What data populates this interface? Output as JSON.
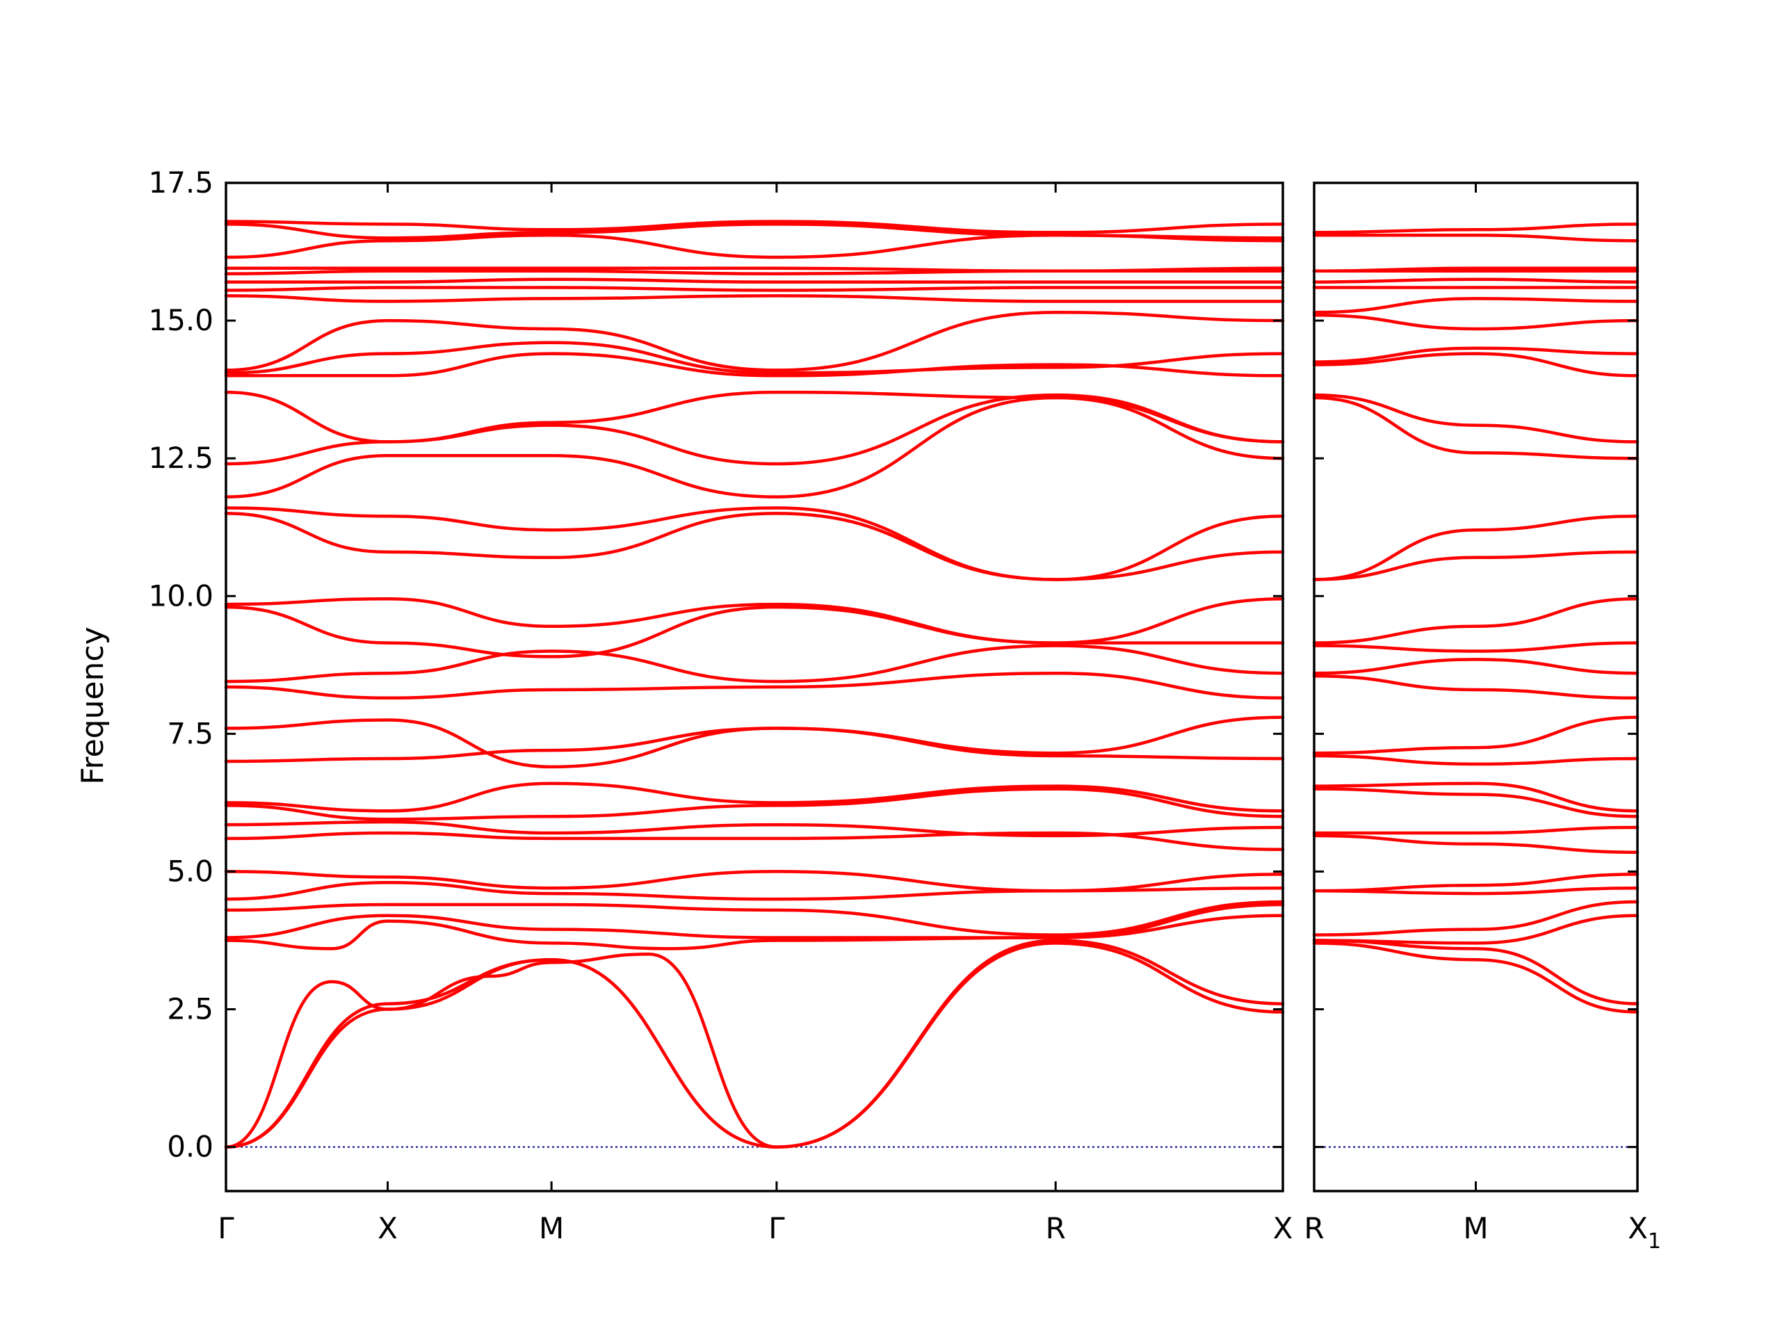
{
  "chart_data": {
    "type": "line",
    "ylabel": "Frequency",
    "ylim": [
      -0.8,
      17.5
    ],
    "yticks": [
      "0.0",
      "2.5",
      "5.0",
      "7.5",
      "10.0",
      "12.5",
      "15.0",
      "17.5"
    ],
    "ytick_values": [
      0,
      2.5,
      5,
      7.5,
      10,
      12.5,
      15,
      17.5
    ],
    "colors": {
      "bands": "#ff0000",
      "zero_line": "#00008b"
    },
    "grid": false,
    "legend": "none",
    "panels": [
      {
        "xlabels": [
          "Γ",
          "X",
          "M",
          "Γ",
          "R",
          "X"
        ],
        "xticks": [
          0,
          0.153,
          0.308,
          0.521,
          0.785,
          1.0
        ],
        "series": [
          {
            "x": [
              0,
              0.1,
              0.153,
              0.25,
              0.308,
              0.4,
              0.521
            ],
            "values": [
              0,
              3.0,
              2.5,
              3.1,
              3.35,
              3.5,
              0
            ]
          },
          {
            "x": [
              0,
              0.153,
              0.308,
              0.521,
              0.785,
              1.0
            ],
            "values": [
              0,
              2.5,
              3.4,
              0,
              3.7,
              2.45
            ]
          },
          {
            "x": [
              0,
              0.153,
              0.308,
              0.521,
              0.785,
              1.0
            ],
            "values": [
              0,
              2.6,
              3.4,
              0,
              3.75,
              2.6
            ]
          },
          {
            "x": [
              0,
              0.1,
              0.153,
              0.308,
              0.42,
              0.521,
              0.785,
              1.0
            ],
            "values": [
              3.75,
              3.6,
              4.1,
              3.7,
              3.6,
              3.75,
              3.8,
              4.2
            ]
          },
          {
            "x": [
              0,
              0.153,
              0.308,
              0.521,
              0.785,
              1.0
            ],
            "values": [
              3.8,
              4.2,
              3.95,
              3.8,
              3.8,
              4.4
            ]
          },
          {
            "x": [
              0,
              0.153,
              0.308,
              0.521,
              0.785,
              1.0
            ],
            "values": [
              4.3,
              4.4,
              4.4,
              4.3,
              3.85,
              4.45
            ]
          },
          {
            "x": [
              0,
              0.153,
              0.308,
              0.521,
              0.785,
              1.0
            ],
            "values": [
              4.5,
              4.8,
              4.6,
              4.5,
              4.65,
              4.7
            ]
          },
          {
            "x": [
              0,
              0.153,
              0.308,
              0.521,
              0.785,
              1.0
            ],
            "values": [
              5.0,
              4.9,
              4.7,
              5.0,
              4.65,
              4.95
            ]
          },
          {
            "x": [
              0,
              0.153,
              0.308,
              0.521,
              0.785,
              1.0
            ],
            "values": [
              5.6,
              5.7,
              5.6,
              5.6,
              5.7,
              5.4
            ]
          },
          {
            "x": [
              0,
              0.153,
              0.308,
              0.521,
              0.785,
              1.0
            ],
            "values": [
              5.85,
              5.9,
              5.7,
              5.85,
              5.65,
              5.8
            ]
          },
          {
            "x": [
              0,
              0.153,
              0.308,
              0.521,
              0.785,
              1.0
            ],
            "values": [
              6.2,
              5.95,
              6.0,
              6.2,
              6.5,
              6.0
            ]
          },
          {
            "x": [
              0,
              0.153,
              0.308,
              0.521,
              0.785,
              1.0
            ],
            "values": [
              6.25,
              6.1,
              6.6,
              6.25,
              6.55,
              6.1
            ]
          },
          {
            "x": [
              0,
              0.153,
              0.308,
              0.521,
              0.785,
              1.0
            ],
            "values": [
              7.0,
              7.05,
              7.2,
              7.6,
              7.1,
              7.05
            ]
          },
          {
            "x": [
              0,
              0.153,
              0.308,
              0.521,
              0.785,
              1.0
            ],
            "values": [
              7.6,
              7.75,
              6.9,
              7.6,
              7.15,
              7.8
            ]
          },
          {
            "x": [
              0,
              0.153,
              0.308,
              0.521,
              0.785,
              1.0
            ],
            "values": [
              8.35,
              8.15,
              8.3,
              8.35,
              8.6,
              8.15
            ]
          },
          {
            "x": [
              0,
              0.153,
              0.308,
              0.521,
              0.785,
              1.0
            ],
            "values": [
              8.45,
              8.6,
              9.0,
              8.45,
              9.1,
              8.6
            ]
          },
          {
            "x": [
              0,
              0.153,
              0.308,
              0.521,
              0.785,
              1.0
            ],
            "values": [
              9.8,
              9.15,
              8.9,
              9.8,
              9.15,
              9.15
            ]
          },
          {
            "x": [
              0,
              0.153,
              0.308,
              0.521,
              0.785,
              1.0
            ],
            "values": [
              9.85,
              9.95,
              9.45,
              9.85,
              9.15,
              9.95
            ]
          },
          {
            "x": [
              0,
              0.153,
              0.308,
              0.521,
              0.785,
              1.0
            ],
            "values": [
              11.5,
              10.8,
              10.7,
              11.5,
              10.3,
              10.8
            ]
          },
          {
            "x": [
              0,
              0.153,
              0.308,
              0.521,
              0.785,
              1.0
            ],
            "values": [
              11.6,
              11.45,
              11.2,
              11.6,
              10.3,
              11.45
            ]
          },
          {
            "x": [
              0,
              0.153,
              0.308,
              0.521,
              0.785,
              1.0
            ],
            "values": [
              11.8,
              12.55,
              12.55,
              11.8,
              13.6,
              12.5
            ]
          },
          {
            "x": [
              0,
              0.153,
              0.308,
              0.521,
              0.785,
              1.0
            ],
            "values": [
              12.4,
              12.8,
              13.1,
              12.4,
              13.65,
              12.8
            ]
          },
          {
            "x": [
              0,
              0.153,
              0.308,
              0.521,
              0.785,
              1.0
            ],
            "values": [
              13.7,
              12.8,
              13.15,
              13.7,
              13.6,
              12.8
            ]
          },
          {
            "x": [
              0,
              0.153,
              0.308,
              0.521,
              0.785,
              1.0
            ],
            "values": [
              14.0,
              14.0,
              14.4,
              14.0,
              14.2,
              14.0
            ]
          },
          {
            "x": [
              0,
              0.153,
              0.308,
              0.521,
              0.785,
              1.0
            ],
            "values": [
              14.05,
              14.4,
              14.6,
              14.05,
              14.15,
              14.4
            ]
          },
          {
            "x": [
              0,
              0.153,
              0.308,
              0.521,
              0.785,
              1.0
            ],
            "values": [
              14.1,
              15.0,
              14.85,
              14.1,
              15.15,
              15.0
            ]
          },
          {
            "x": [
              0,
              0.153,
              0.308,
              0.521,
              0.785,
              1.0
            ],
            "values": [
              15.45,
              15.35,
              15.4,
              15.45,
              15.35,
              15.35
            ]
          },
          {
            "x": [
              0,
              0.153,
              0.308,
              0.521,
              0.785,
              1.0
            ],
            "values": [
              15.55,
              15.6,
              15.6,
              15.55,
              15.6,
              15.6
            ]
          },
          {
            "x": [
              0,
              0.153,
              0.308,
              0.521,
              0.785,
              1.0
            ],
            "values": [
              15.7,
              15.7,
              15.75,
              15.7,
              15.7,
              15.7
            ]
          },
          {
            "x": [
              0,
              0.153,
              0.308,
              0.521,
              0.785,
              1.0
            ],
            "values": [
              15.85,
              15.9,
              15.9,
              15.85,
              15.9,
              15.9
            ]
          },
          {
            "x": [
              0,
              0.153,
              0.308,
              0.521,
              0.785,
              1.0
            ],
            "values": [
              15.95,
              15.95,
              15.95,
              15.95,
              15.9,
              15.95
            ]
          },
          {
            "x": [
              0,
              0.153,
              0.308,
              0.521,
              0.785,
              1.0
            ],
            "values": [
              16.15,
              16.45,
              16.55,
              16.15,
              16.55,
              16.45
            ]
          },
          {
            "x": [
              0,
              0.153,
              0.308,
              0.521,
              0.785,
              1.0
            ],
            "values": [
              16.75,
              16.5,
              16.6,
              16.75,
              16.55,
              16.5
            ]
          },
          {
            "x": [
              0,
              0.153,
              0.308,
              0.521,
              0.785,
              1.0
            ],
            "values": [
              16.8,
              16.75,
              16.65,
              16.8,
              16.6,
              16.75
            ]
          }
        ]
      },
      {
        "xlabels": [
          "R",
          "M",
          "X1"
        ],
        "xticks": [
          0,
          0.5,
          1.0
        ],
        "series": [
          {
            "x": [
              0,
              0.5,
              1.0
            ],
            "values": [
              3.7,
              3.4,
              2.45
            ]
          },
          {
            "x": [
              0,
              0.5,
              1.0
            ],
            "values": [
              3.75,
              3.6,
              2.6
            ]
          },
          {
            "x": [
              0,
              0.5,
              1.0
            ],
            "values": [
              3.75,
              3.7,
              4.2
            ]
          },
          {
            "x": [
              0,
              0.5,
              1.0
            ],
            "values": [
              3.85,
              3.95,
              4.45
            ]
          },
          {
            "x": [
              0,
              0.5,
              1.0
            ],
            "values": [
              4.65,
              4.6,
              4.7
            ]
          },
          {
            "x": [
              0,
              0.5,
              1.0
            ],
            "values": [
              4.65,
              4.75,
              4.95
            ]
          },
          {
            "x": [
              0,
              0.5,
              1.0
            ],
            "values": [
              5.65,
              5.5,
              5.35
            ]
          },
          {
            "x": [
              0,
              0.5,
              1.0
            ],
            "values": [
              5.7,
              5.7,
              5.8
            ]
          },
          {
            "x": [
              0,
              0.5,
              1.0
            ],
            "values": [
              6.5,
              6.4,
              6.0
            ]
          },
          {
            "x": [
              0,
              0.5,
              1.0
            ],
            "values": [
              6.55,
              6.6,
              6.1
            ]
          },
          {
            "x": [
              0,
              0.5,
              1.0
            ],
            "values": [
              7.1,
              6.95,
              7.05
            ]
          },
          {
            "x": [
              0,
              0.5,
              1.0
            ],
            "values": [
              7.15,
              7.25,
              7.8
            ]
          },
          {
            "x": [
              0,
              0.5,
              1.0
            ],
            "values": [
              8.55,
              8.3,
              8.15
            ]
          },
          {
            "x": [
              0,
              0.5,
              1.0
            ],
            "values": [
              8.6,
              8.85,
              8.6
            ]
          },
          {
            "x": [
              0,
              0.5,
              1.0
            ],
            "values": [
              9.1,
              9.0,
              9.15
            ]
          },
          {
            "x": [
              0,
              0.5,
              1.0
            ],
            "values": [
              9.15,
              9.45,
              9.95
            ]
          },
          {
            "x": [
              0,
              0.5,
              1.0
            ],
            "values": [
              10.3,
              10.7,
              10.8
            ]
          },
          {
            "x": [
              0,
              0.5,
              1.0
            ],
            "values": [
              10.3,
              11.2,
              11.45
            ]
          },
          {
            "x": [
              0,
              0.5,
              1.0
            ],
            "values": [
              13.6,
              12.6,
              12.5
            ]
          },
          {
            "x": [
              0,
              0.5,
              1.0
            ],
            "values": [
              13.65,
              13.1,
              12.8
            ]
          },
          {
            "x": [
              0,
              0.5,
              1.0
            ],
            "values": [
              14.2,
              14.4,
              14.0
            ]
          },
          {
            "x": [
              0,
              0.5,
              1.0
            ],
            "values": [
              14.25,
              14.5,
              14.4
            ]
          },
          {
            "x": [
              0,
              0.5,
              1.0
            ],
            "values": [
              15.1,
              14.85,
              15.0
            ]
          },
          {
            "x": [
              0,
              0.5,
              1.0
            ],
            "values": [
              15.15,
              15.4,
              15.35
            ]
          },
          {
            "x": [
              0,
              0.5,
              1.0
            ],
            "values": [
              15.6,
              15.6,
              15.6
            ]
          },
          {
            "x": [
              0,
              0.5,
              1.0
            ],
            "values": [
              15.7,
              15.75,
              15.7
            ]
          },
          {
            "x": [
              0,
              0.5,
              1.0
            ],
            "values": [
              15.9,
              15.9,
              15.9
            ]
          },
          {
            "x": [
              0,
              0.5,
              1.0
            ],
            "values": [
              15.9,
              15.95,
              15.95
            ]
          },
          {
            "x": [
              0,
              0.5,
              1.0
            ],
            "values": [
              16.55,
              16.55,
              16.45
            ]
          },
          {
            "x": [
              0,
              0.5,
              1.0
            ],
            "values": [
              16.6,
              16.65,
              16.75
            ]
          }
        ]
      }
    ]
  }
}
